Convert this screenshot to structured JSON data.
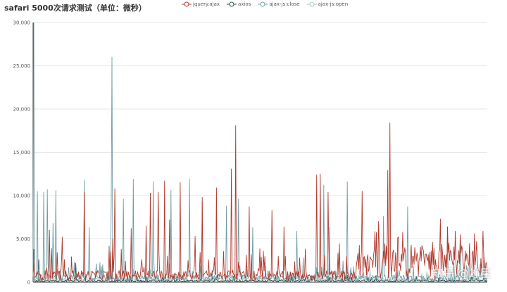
{
  "title": "safari 5000次请求测试（单位：微秒）",
  "watermark": "知乎 @峥臣",
  "chart_data": {
    "type": "line",
    "title": "safari 5000次请求测试（单位：微秒）",
    "xlabel": "",
    "ylabel": "",
    "ylim": [
      0,
      30000
    ],
    "yticks": [
      "0",
      "5,000",
      "10,000",
      "15,000",
      "20,000",
      "25,000",
      "30,000"
    ],
    "grid": true,
    "legend_position": "top-center",
    "n_points": 5000,
    "series": [
      {
        "name": "jquery.ajax",
        "color": "#b13a2e",
        "baseline": 800,
        "peaks": [
          [
            180,
            6000
          ],
          [
            320,
            5200
          ],
          [
            560,
            10400
          ],
          [
            880,
            5000
          ],
          [
            900,
            10800
          ],
          [
            1080,
            6200
          ],
          [
            1240,
            6500
          ],
          [
            1290,
            10300
          ],
          [
            1380,
            10400
          ],
          [
            1450,
            11700
          ],
          [
            1500,
            7200
          ],
          [
            1620,
            11500
          ],
          [
            1780,
            5300
          ],
          [
            1860,
            9800
          ],
          [
            2020,
            10900
          ],
          [
            2180,
            13100
          ],
          [
            2230,
            18100
          ],
          [
            2380,
            8700
          ],
          [
            2630,
            8300
          ],
          [
            2760,
            6400
          ],
          [
            3120,
            12400
          ],
          [
            3160,
            12500
          ],
          [
            3250,
            10400
          ],
          [
            3620,
            10500
          ],
          [
            3900,
            12900
          ],
          [
            3930,
            18400
          ],
          [
            4020,
            5200
          ],
          [
            4200,
            4000
          ],
          [
            4400,
            4600
          ],
          [
            4480,
            7300
          ],
          [
            4560,
            6400
          ],
          [
            4650,
            5700
          ],
          [
            4720,
            4200
          ],
          [
            4860,
            5600
          ],
          [
            4950,
            5900
          ]
        ],
        "dense_from": 3550,
        "dense_level": 3200
      },
      {
        "name": "axios",
        "color": "#2d4a4e",
        "baseline": 150,
        "peaks": [
          [
            5,
            3800
          ],
          [
            60,
            2600
          ],
          [
            470,
            2200
          ],
          [
            1000,
            700
          ],
          [
            2000,
            600
          ],
          [
            3000,
            500
          ],
          [
            4000,
            600
          ]
        ],
        "dense_from": 5000,
        "dense_level": 0
      },
      {
        "name": "ajax-js:close",
        "color": "#6f9ea3",
        "baseline": 500,
        "peaks": [
          [
            5,
            30000
          ],
          [
            50,
            10500
          ],
          [
            120,
            10400
          ],
          [
            160,
            10700
          ],
          [
            220,
            6800
          ],
          [
            250,
            10600
          ],
          [
            560,
            11800
          ],
          [
            620,
            6300
          ],
          [
            860,
            9500
          ],
          [
            870,
            26000
          ],
          [
            990,
            9600
          ],
          [
            1100,
            11900
          ],
          [
            1320,
            11600
          ],
          [
            1520,
            10600
          ],
          [
            1720,
            11900
          ],
          [
            1860,
            9300
          ],
          [
            2130,
            8800
          ],
          [
            2260,
            9600
          ],
          [
            2420,
            6300
          ],
          [
            2900,
            5900
          ],
          [
            3200,
            11200
          ],
          [
            3260,
            6300
          ],
          [
            3460,
            11600
          ],
          [
            3860,
            7600
          ],
          [
            4120,
            8700
          ],
          [
            4560,
            6400
          ],
          [
            4700,
            4800
          ],
          [
            4800,
            4200
          ],
          [
            4960,
            3500
          ]
        ],
        "dense_from": 5000,
        "dense_level": 0
      },
      {
        "name": "ajax-js:open",
        "color": "#a9c5c2",
        "baseline": 300,
        "peaks": [
          [
            300,
            1500
          ],
          [
            1200,
            1200
          ],
          [
            2400,
            1300
          ],
          [
            3600,
            1200
          ],
          [
            4500,
            1100
          ]
        ],
        "dense_from": 5000,
        "dense_level": 0
      }
    ]
  }
}
